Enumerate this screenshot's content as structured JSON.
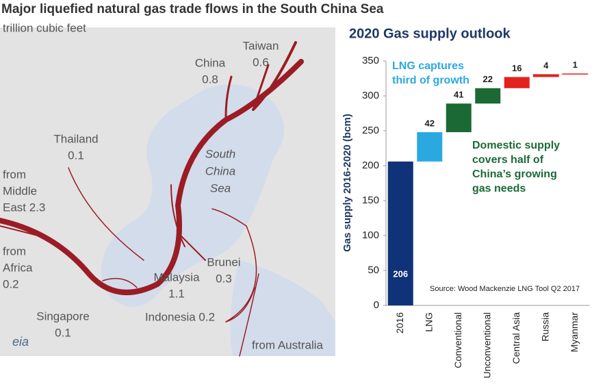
{
  "map": {
    "title": "Major liquefied natural gas trade flows in the South China Sea",
    "subtitle": "trillion cubic feet",
    "sea_label": [
      "South",
      "China",
      "Sea"
    ],
    "labels": [
      [
        "Taiwan",
        "0.6"
      ],
      [
        "China",
        "0.8"
      ],
      [
        "Thailand",
        "0.1"
      ],
      [
        "from",
        "Middle",
        "East 2.3"
      ],
      [
        "from",
        "Africa",
        "0.2"
      ],
      [
        "Malaysia",
        "1.1"
      ],
      [
        "Brunei",
        "0.3"
      ],
      [
        "Singapore",
        "0.1"
      ],
      [
        "Indonesia 0.2"
      ],
      [
        "from Australia"
      ]
    ],
    "logo": "eia"
  },
  "chart_data": {
    "type": "waterfall",
    "title": "2020 Gas supply outlook",
    "y_label": "Gas supply 2016-2020 (bcm)",
    "categories": [
      "2016",
      "LNG",
      "Conventional",
      "Unconventional",
      "Central Asia",
      "Russia",
      "Myanmar"
    ],
    "values": [
      206,
      42,
      41,
      22,
      16,
      4,
      1
    ],
    "colors": [
      "#0f3278",
      "#2aa9e0",
      "#1b6a35",
      "#1b6a35",
      "#e3211d",
      "#e3211d",
      "#e3211d"
    ],
    "ylim": [
      0,
      350
    ],
    "yticks": [
      0,
      50,
      100,
      150,
      200,
      250,
      300,
      350
    ],
    "annotations": [
      {
        "lines": [
          "LNG captures",
          "third of growth"
        ],
        "color": "#2aa9e0"
      },
      {
        "lines": [
          "Domestic supply",
          "covers half of",
          "China’s growing",
          "gas needs"
        ],
        "color": "#1b6a35"
      }
    ],
    "source": "Source: Wood Mackenzie LNG Tool Q2 2017"
  }
}
